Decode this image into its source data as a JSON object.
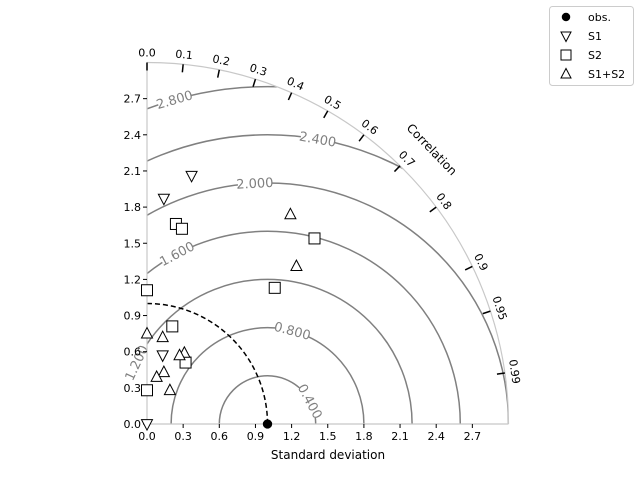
{
  "chart_data": {
    "type": "scatter",
    "subtype": "taylor-diagram",
    "xlabel": "Standard deviation",
    "corr_label": "Correlation",
    "std_ticks": [
      "0.0",
      "0.3",
      "0.6",
      "0.9",
      "1.2",
      "1.5",
      "1.8",
      "2.1",
      "2.4",
      "2.7"
    ],
    "std_tick_values": [
      0.0,
      0.3,
      0.6,
      0.9,
      1.2,
      1.5,
      1.8,
      2.1,
      2.4,
      2.7
    ],
    "std_max": 3.0,
    "corr_ticks": [
      "0.0",
      "0.1",
      "0.2",
      "0.3",
      "0.4",
      "0.5",
      "0.6",
      "0.7",
      "0.8",
      "0.9",
      "0.95",
      "0.99"
    ],
    "corr_tick_values": [
      0.0,
      0.1,
      0.2,
      0.3,
      0.4,
      0.5,
      0.6,
      0.7,
      0.8,
      0.9,
      0.95,
      0.99
    ],
    "reference_std": 1.0,
    "contours": [
      {
        "value": 0.4,
        "label": "0.400",
        "label_angle_deg": 28
      },
      {
        "value": 0.8,
        "label": "0.800",
        "label_angle_deg": 75
      },
      {
        "value": 1.2,
        "label": "1.200",
        "label_angle_deg": 155
      },
      {
        "value": 1.6,
        "label": "1.600",
        "label_angle_deg": 118
      },
      {
        "value": 2.0,
        "label": "2.000",
        "label_angle_deg": 93
      },
      {
        "value": 2.4,
        "label": "2.400",
        "label_angle_deg": 80
      },
      {
        "value": 2.8,
        "label": "2.800",
        "label_angle_deg": 106
      }
    ],
    "legend": {
      "placement": "top-right",
      "entries": [
        {
          "label": "obs.",
          "marker": "filled-circle"
        },
        {
          "label": "S1",
          "marker": "triangle-down"
        },
        {
          "label": "S2",
          "marker": "square"
        },
        {
          "label": "S1+S2",
          "marker": "triangle-up"
        }
      ]
    },
    "series": [
      {
        "name": "obs.",
        "marker": "filled-circle",
        "points": [
          [
            1.0,
            0.0
          ]
        ]
      },
      {
        "name": "S1",
        "marker": "triangle-down",
        "points": [
          [
            0.37,
            2.06
          ],
          [
            0.14,
            1.87
          ],
          [
            0.13,
            0.57
          ],
          [
            0.0,
            0.0
          ]
        ]
      },
      {
        "name": "S2",
        "marker": "square",
        "points": [
          [
            0.24,
            1.66
          ],
          [
            0.29,
            1.62
          ],
          [
            1.39,
            1.54
          ],
          [
            1.06,
            1.13
          ],
          [
            0.0,
            1.11
          ],
          [
            0.21,
            0.81
          ],
          [
            0.32,
            0.51
          ],
          [
            0.0,
            0.28
          ]
        ]
      },
      {
        "name": "S1+S2",
        "marker": "triangle-up",
        "points": [
          [
            1.19,
            1.74
          ],
          [
            1.24,
            1.31
          ],
          [
            0.0,
            0.75
          ],
          [
            0.13,
            0.72
          ],
          [
            0.31,
            0.59
          ],
          [
            0.27,
            0.57
          ],
          [
            0.14,
            0.43
          ],
          [
            0.08,
            0.39
          ],
          [
            0.19,
            0.28
          ]
        ]
      }
    ]
  }
}
